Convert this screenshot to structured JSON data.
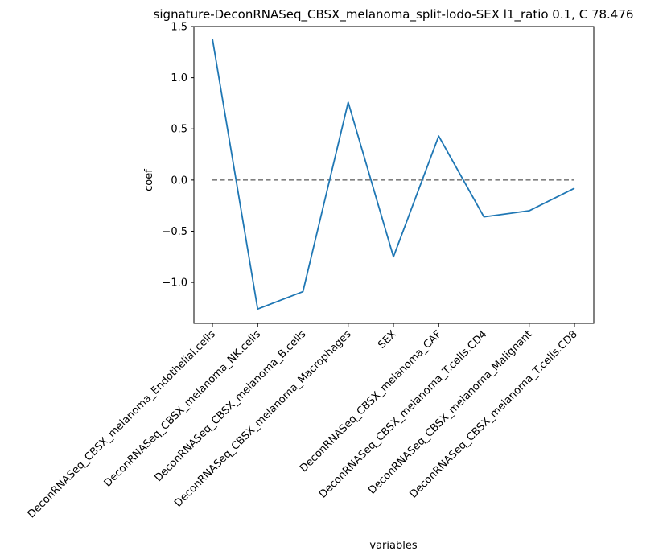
{
  "chart_data": {
    "type": "line",
    "title": "signature-DeconRNASeq_CBSX_melanoma_split-lodo-SEX l1_ratio 0.1, C 78.476",
    "xlabel": "variables",
    "ylabel": "coef",
    "categories": [
      "DeconRNASeq_CBSX_melanoma_Endothelial.cells",
      "DeconRNASeq_CBSX_melanoma_NK.cells",
      "DeconRNASeq_CBSX_melanoma_B.cells",
      "DeconRNASeq_CBSX_melanoma_Macrophages",
      "SEX",
      "DeconRNASeq_CBSX_melanoma_CAF",
      "DeconRNASeq_CBSX_melanoma_T.cells.CD4",
      "DeconRNASeq_CBSX_melanoma_Malignant",
      "DeconRNASeq_CBSX_melanoma_T.cells.CD8"
    ],
    "series": [
      {
        "values": [
          1.38,
          -1.26,
          -1.09,
          0.76,
          -0.75,
          0.43,
          -0.36,
          -0.3,
          -0.08
        ]
      }
    ],
    "reference_line": {
      "y": 0,
      "style": "dashed"
    },
    "ylim": [
      -1.4,
      1.5
    ],
    "yticks": [
      1.5,
      1.0,
      0.5,
      0.0,
      -0.5,
      -1.0
    ],
    "ytick_labels": [
      "1.5",
      "1.0",
      "0.5",
      "0.0",
      "−0.5",
      "−1.0"
    ],
    "grid": false,
    "colors": {
      "line": "#1f77b4",
      "reference": "#7f7f7f"
    }
  }
}
